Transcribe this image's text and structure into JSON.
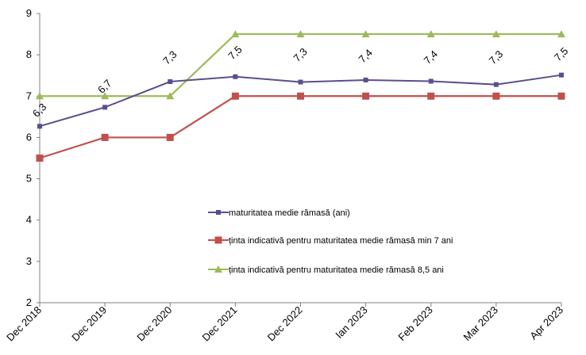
{
  "chart_data": {
    "type": "line",
    "categories": [
      "Dec 2018",
      "Dec 2019",
      "Dec 2020",
      "Dec 2021",
      "Dec 2022",
      "Ian 2023",
      "Feb 2023",
      "Mar 2023",
      "Apr 2023"
    ],
    "ylim": [
      2,
      9
    ],
    "yticks": [
      "2",
      "3",
      "4",
      "5",
      "6",
      "7",
      "8",
      "9"
    ],
    "grid": false,
    "legend_position": "center-right",
    "series": [
      {
        "name": "maturitatea medie rămasă  (ani)",
        "values": [
          6.27,
          6.73,
          7.35,
          7.47,
          7.34,
          7.39,
          7.36,
          7.28,
          7.51
        ],
        "data_labels": [
          "6,3",
          "6,7",
          "7,3",
          "7,5",
          "7,3",
          "7,4",
          "7,4",
          "7,3",
          "7,5"
        ],
        "color": "#5A4E8E",
        "marker": "square-small"
      },
      {
        "name": "ținta indicativă pentru maturitatea medie rămasă min 7 ani",
        "values": [
          5.5,
          6,
          6,
          7,
          7,
          7,
          7,
          7,
          7
        ],
        "color": "#C0504D",
        "marker": "square"
      },
      {
        "name": "ținta indicativă pentru maturitatea medie rămasă  8,5 ani",
        "values": [
          7,
          7,
          7,
          8.5,
          8.5,
          8.5,
          8.5,
          8.5,
          8.5
        ],
        "color": "#9BBB59",
        "marker": "triangle"
      }
    ]
  }
}
